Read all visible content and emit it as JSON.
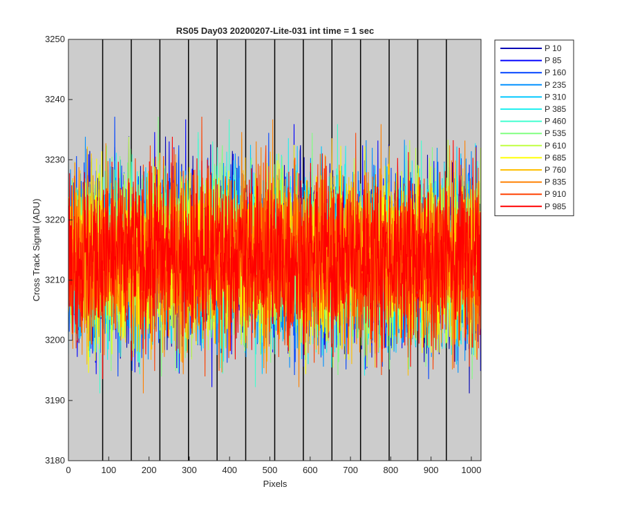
{
  "chart_data": {
    "type": "line",
    "title": "RS05 Day03 20200207-Lite-031 int time = 1 sec",
    "xlabel": "Pixels",
    "ylabel": "Cross Track Signal (ADU)",
    "xlim": [
      0,
      1024
    ],
    "ylim": [
      3180,
      3250
    ],
    "xticks": [
      0,
      100,
      200,
      300,
      400,
      500,
      600,
      700,
      800,
      900,
      1000
    ],
    "yticks": [
      3180,
      3190,
      3200,
      3210,
      3220,
      3230,
      3240,
      3250
    ],
    "x_tick_labels": [
      "0",
      "100",
      "200",
      "300",
      "400",
      "500",
      "600",
      "700",
      "800",
      "900",
      "1000"
    ],
    "y_tick_labels": [
      "3180",
      "3190",
      "3200",
      "3210",
      "3220",
      "3230",
      "3240",
      "3250"
    ],
    "background_color": "#cccccc",
    "tap_boundaries": [
      85,
      156,
      227,
      298,
      369,
      440,
      512,
      583,
      654,
      725,
      796,
      867,
      938
    ],
    "tap_boundary_color": "#000000",
    "legend_position": "outside-top-right",
    "signal_model": {
      "mean": 3214,
      "min": 3183,
      "max": 3242
    },
    "series": [
      {
        "name": "P 10",
        "color": "#0000b4"
      },
      {
        "name": "P 85",
        "color": "#0000ff"
      },
      {
        "name": "P 160",
        "color": "#0043ff"
      },
      {
        "name": "P 235",
        "color": "#0090ff"
      },
      {
        "name": "P 310",
        "color": "#00c8ff"
      },
      {
        "name": "P 385",
        "color": "#20efef"
      },
      {
        "name": "P 460",
        "color": "#40ffcf"
      },
      {
        "name": "P 535",
        "color": "#80ff80"
      },
      {
        "name": "P 610",
        "color": "#c0ff40"
      },
      {
        "name": "P 685",
        "color": "#ffff00"
      },
      {
        "name": "P 760",
        "color": "#ffbf00"
      },
      {
        "name": "P 835",
        "color": "#ff8000"
      },
      {
        "name": "P 910",
        "color": "#ff4000"
      },
      {
        "name": "P 985",
        "color": "#ff0000"
      }
    ]
  }
}
